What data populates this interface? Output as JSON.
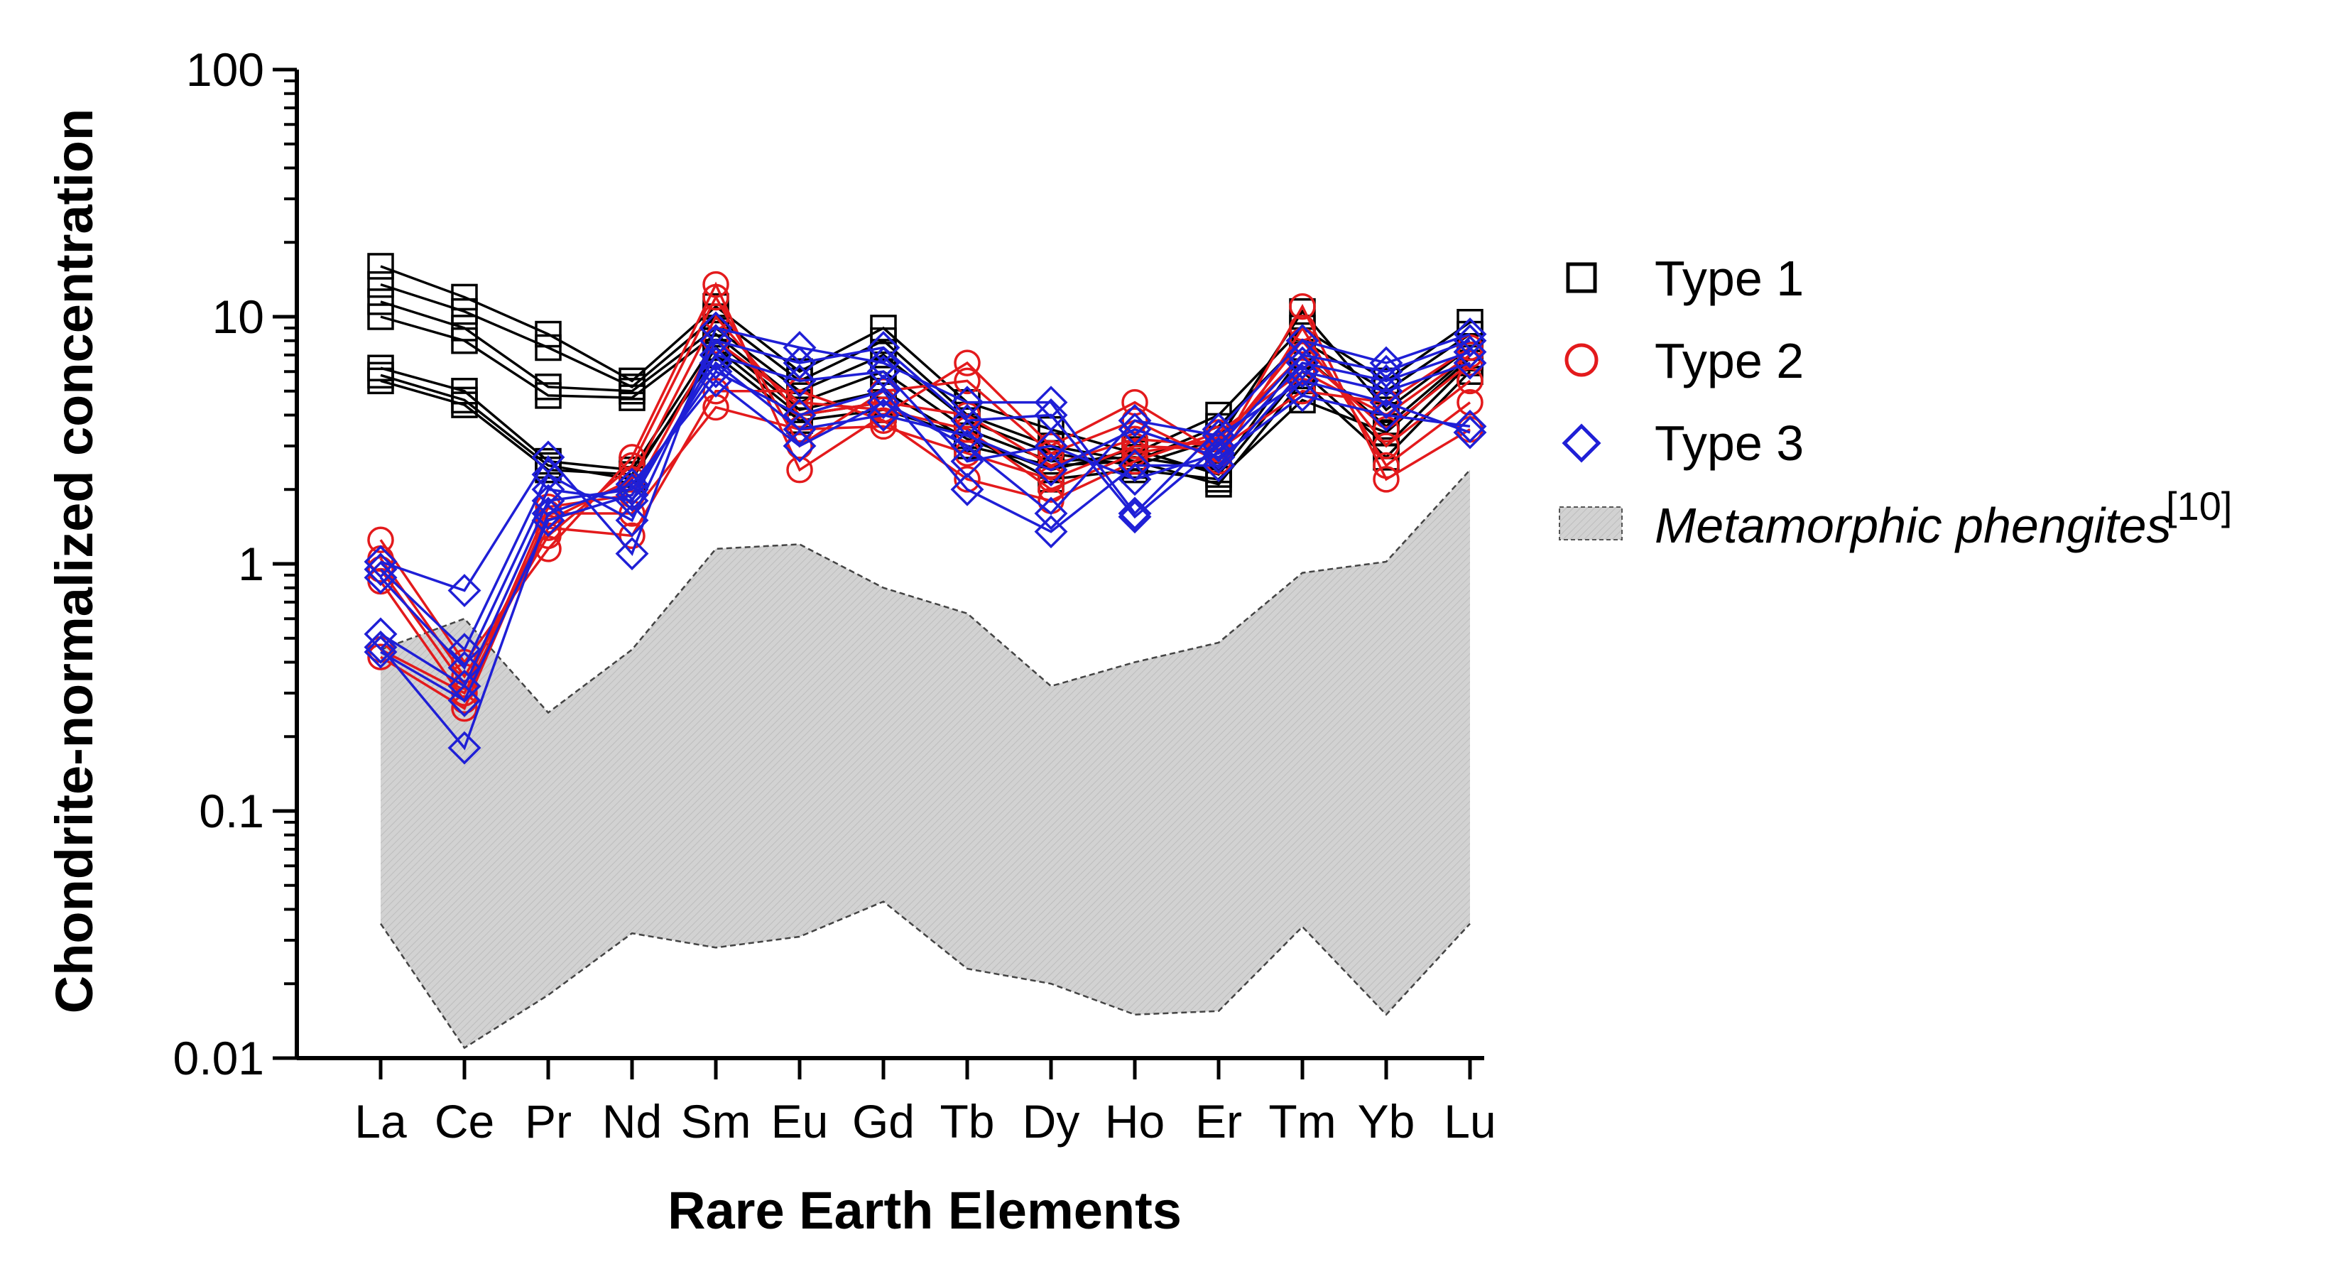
{
  "chart_data": {
    "type": "line",
    "yscale": "log",
    "xlabel": "Rare Earth Elements",
    "ylabel": "Chondrite-normalized concentration",
    "ylim": [
      0.01,
      100
    ],
    "yticks": [
      {
        "value": 0.01,
        "label": "0.01"
      },
      {
        "value": 0.1,
        "label": "0.1"
      },
      {
        "value": 1,
        "label": "1"
      },
      {
        "value": 10,
        "label": "10"
      },
      {
        "value": 100,
        "label": "100"
      }
    ],
    "categories": [
      "La",
      "Ce",
      "Pr",
      "Nd",
      "Sm",
      "Eu",
      "Gd",
      "Tb",
      "Dy",
      "Ho",
      "Er",
      "Tm",
      "Yb",
      "Lu"
    ],
    "grid": false,
    "legend_position": "right",
    "legend": [
      {
        "label": "Type 1",
        "marker": "square",
        "color": "#000000"
      },
      {
        "label": "Type 2",
        "marker": "circle",
        "color": "#e31a1c"
      },
      {
        "label": "Type 3",
        "marker": "diamond",
        "color": "#1f1fd6"
      },
      {
        "label": "Metamorphic phengites",
        "superscript": "[10]",
        "marker": "band",
        "color": "#cccccc"
      }
    ],
    "band": {
      "name": "Metamorphic phengites",
      "upper": [
        0.45,
        0.6,
        0.25,
        0.45,
        1.15,
        1.2,
        0.8,
        0.63,
        0.32,
        0.4,
        0.48,
        0.92,
        1.02,
        2.4
      ],
      "lower": [
        0.035,
        0.011,
        0.018,
        0.032,
        0.028,
        0.031,
        0.043,
        0.023,
        0.02,
        0.015,
        0.0155,
        0.034,
        0.015,
        0.035
      ]
    },
    "series": [
      {
        "name": "Type 1",
        "marker": "square",
        "color": "#000000",
        "values": [
          16,
          12,
          8.5,
          5.5,
          11,
          6,
          9,
          4.5,
          3.5,
          2.8,
          4,
          9,
          5.5,
          9.5
        ]
      },
      {
        "name": "Type 1",
        "marker": "square",
        "color": "#000000",
        "values": [
          13.5,
          10.5,
          7.5,
          5.2,
          10,
          5.5,
          8,
          4,
          3,
          2.6,
          3.6,
          8,
          5,
          8.5
        ]
      },
      {
        "name": "Type 1",
        "marker": "square",
        "color": "#000000",
        "values": [
          11.5,
          9,
          5.2,
          5,
          9,
          5,
          7,
          3.8,
          2.8,
          2.5,
          3.2,
          10.5,
          4.2,
          7.5
        ]
      },
      {
        "name": "Type 1",
        "marker": "square",
        "color": "#000000",
        "values": [
          10,
          8,
          4.8,
          4.7,
          8.5,
          4.5,
          6,
          3.5,
          2.6,
          2.7,
          2.4,
          7,
          3.6,
          7
        ]
      },
      {
        "name": "Type 1",
        "marker": "square",
        "color": "#000000",
        "values": [
          6.2,
          5,
          2.6,
          2.4,
          8,
          4.2,
          5,
          3.2,
          2.4,
          2.9,
          2.3,
          6,
          3,
          6.5
        ]
      },
      {
        "name": "Type 1",
        "marker": "square",
        "color": "#000000",
        "values": [
          5.8,
          4.6,
          2.5,
          2.2,
          7.5,
          4,
          4.5,
          3,
          2.5,
          2.6,
          2.1,
          5.5,
          2.7,
          6
        ]
      },
      {
        "name": "Type 1",
        "marker": "square",
        "color": "#000000",
        "values": [
          5.5,
          4.4,
          2.4,
          2.3,
          7,
          3.8,
          4.2,
          3.3,
          2.2,
          2.4,
          2.2,
          4.6,
          3.4,
          6.8
        ]
      },
      {
        "name": "Type 2",
        "marker": "circle",
        "color": "#e31a1c",
        "values": [
          1.25,
          0.4,
          1.15,
          2.7,
          13.5,
          2.4,
          4,
          6.5,
          3,
          4.5,
          2.8,
          11,
          2.2,
          3.5
        ]
      },
      {
        "name": "Type 2",
        "marker": "circle",
        "color": "#e31a1c",
        "values": [
          1.05,
          0.35,
          1.3,
          2.5,
          12,
          3,
          5,
          5.5,
          2.8,
          3.8,
          2.6,
          9,
          2.5,
          4.5
        ]
      },
      {
        "name": "Type 2",
        "marker": "circle",
        "color": "#e31a1c",
        "values": [
          0.95,
          0.32,
          1.5,
          2.2,
          10,
          4,
          4.5,
          4,
          2.5,
          3.2,
          3,
          8,
          3,
          5.5
        ]
      },
      {
        "name": "Type 2",
        "marker": "circle",
        "color": "#e31a1c",
        "values": [
          0.85,
          0.28,
          1.7,
          1.9,
          8,
          4.5,
          4.2,
          3.5,
          2,
          2.8,
          3.2,
          7,
          3.5,
          6.5
        ]
      },
      {
        "name": "Type 2",
        "marker": "circle",
        "color": "#e31a1c",
        "values": [
          0.45,
          0.3,
          1.4,
          1.3,
          5,
          5,
          3.8,
          2.2,
          1.8,
          2.6,
          3.4,
          6,
          4,
          7
        ]
      },
      {
        "name": "Type 2",
        "marker": "circle",
        "color": "#e31a1c",
        "values": [
          0.42,
          0.26,
          1.6,
          1.6,
          4.3,
          3.5,
          3.6,
          2.8,
          2.2,
          3,
          2.9,
          5,
          4.5,
          7.5
        ]
      },
      {
        "name": "Type 3",
        "marker": "diamond",
        "color": "#1f1fd6",
        "values": [
          1.02,
          0.78,
          2.7,
          1.1,
          9,
          7.5,
          6.5,
          4.5,
          4.5,
          1.6,
          3.5,
          8,
          6.5,
          8.5
        ]
      },
      {
        "name": "Type 3",
        "marker": "diamond",
        "color": "#1f1fd6",
        "values": [
          0.95,
          0.45,
          2.3,
          1.5,
          8,
          6.5,
          7.5,
          3.8,
          4,
          1.55,
          3,
          7,
          6,
          8
        ]
      },
      {
        "name": "Type 3",
        "marker": "diamond",
        "color": "#1f1fd6",
        "values": [
          0.88,
          0.38,
          2,
          1.8,
          7,
          5.5,
          6,
          2.6,
          3,
          2.2,
          2.8,
          6.5,
          5.5,
          7.2
        ]
      },
      {
        "name": "Type 3",
        "marker": "diamond",
        "color": "#1f1fd6",
        "values": [
          0.52,
          0.32,
          1.8,
          2,
          6,
          4,
          5,
          2,
          1.35,
          2.5,
          2.5,
          6,
          5,
          6.5
        ]
      },
      {
        "name": "Type 3",
        "marker": "diamond",
        "color": "#1f1fd6",
        "values": [
          0.46,
          0.18,
          1.6,
          2.1,
          5.5,
          3,
          4.5,
          3,
          1.6,
          3.8,
          3.3,
          5.5,
          4.5,
          3.4
        ]
      },
      {
        "name": "Type 3",
        "marker": "diamond",
        "color": "#1f1fd6",
        "values": [
          0.44,
          0.28,
          1.5,
          1.9,
          6.5,
          3.5,
          4,
          3.3,
          2.4,
          3.5,
          2.7,
          4.8,
          4,
          3.6
        ]
      }
    ]
  }
}
